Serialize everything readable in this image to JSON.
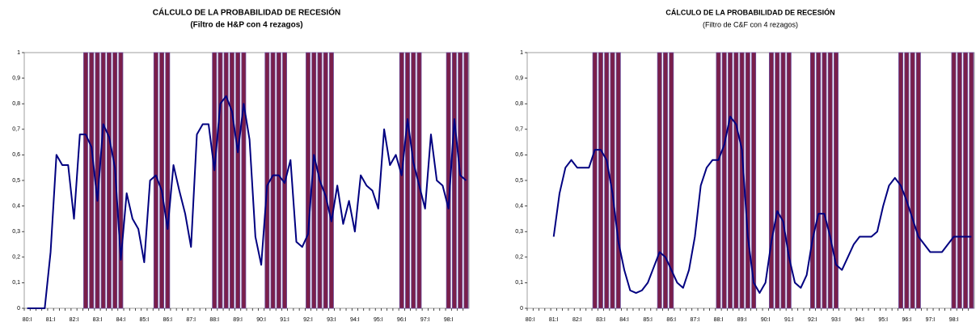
{
  "chart_data": [
    {
      "type": "line",
      "title": "CÁLCULO DE LA PROBABILIDAD DE RECESIÓN",
      "subtitle": "(Filtro de H&P con 4 rezagos)",
      "categories": [
        "80:I",
        null,
        null,
        null,
        "81:I",
        null,
        null,
        null,
        "82:I",
        null,
        null,
        null,
        "83:I",
        null,
        null,
        null,
        "84:I",
        null,
        null,
        null,
        "85:I",
        null,
        null,
        null,
        "86:I",
        null,
        null,
        null,
        "87:I",
        null,
        null,
        null,
        "88:I",
        null,
        null,
        null,
        "89:I",
        null,
        null,
        null,
        "90:I",
        null,
        null,
        null,
        "91:I",
        null,
        null,
        null,
        "92:I",
        null,
        null,
        null,
        "93:I",
        null,
        null,
        null,
        "94:I",
        null,
        null,
        null,
        "95:I",
        null,
        null,
        null,
        "96:I",
        null,
        null,
        null,
        "97:I",
        null,
        null,
        null,
        "98:I",
        null,
        null,
        null
      ],
      "series": [
        {
          "type": "bar",
          "color": "#7a1f4a",
          "values": [
            0,
            0,
            0,
            0,
            0,
            0,
            0,
            0,
            0,
            0,
            1,
            1,
            1,
            1,
            1,
            1,
            1,
            0,
            0,
            0,
            0,
            0,
            1,
            1,
            1,
            0,
            0,
            0,
            0,
            0,
            0,
            0,
            1,
            1,
            1,
            1,
            1,
            1,
            0,
            0,
            0,
            1,
            1,
            1,
            1,
            0,
            0,
            0,
            1,
            1,
            1,
            1,
            1,
            0,
            0,
            0,
            0,
            0,
            0,
            0,
            0,
            0,
            0,
            0,
            1,
            1,
            1,
            1,
            0,
            0,
            0,
            0,
            1,
            1,
            1,
            1
          ]
        },
        {
          "type": "line",
          "color": "#000080",
          "values": [
            0,
            0,
            0,
            0,
            0.22,
            0.6,
            0.56,
            0.56,
            0.35,
            0.68,
            0.68,
            0.63,
            0.42,
            0.72,
            0.67,
            0.55,
            0.19,
            0.45,
            0.35,
            0.31,
            0.18,
            0.5,
            0.52,
            0.46,
            0.31,
            0.56,
            0.46,
            0.37,
            0.24,
            0.68,
            0.72,
            0.72,
            0.54,
            0.8,
            0.83,
            0.77,
            0.61,
            0.8,
            0.66,
            0.28,
            0.17,
            0.48,
            0.52,
            0.52,
            0.49,
            0.58,
            0.26,
            0.24,
            0.29,
            0.6,
            0.5,
            0.44,
            0.34,
            0.48,
            0.33,
            0.42,
            0.3,
            0.52,
            0.48,
            0.46,
            0.39,
            0.7,
            0.56,
            0.6,
            0.52,
            0.74,
            0.57,
            0.48,
            0.39,
            0.68,
            0.5,
            0.48,
            0.39,
            0.74,
            0.52,
            0.5
          ]
        }
      ],
      "ylim": [
        0,
        1
      ],
      "yticks": [
        0,
        {
          "value": 0.1,
          "label": "0,1"
        },
        {
          "value": 0.2,
          "label": "0,2"
        },
        {
          "value": 0.3,
          "label": "0,3"
        },
        {
          "value": 0.4,
          "label": "0,4"
        },
        {
          "value": 0.5,
          "label": "0,5"
        },
        {
          "value": 0.6,
          "label": "0,6"
        },
        {
          "value": 0.7,
          "label": "0,7"
        },
        {
          "value": 0.8,
          "label": "0,8"
        },
        {
          "value": 0.9,
          "label": "0,9"
        },
        1
      ]
    },
    {
      "type": "line",
      "title": "CÁLCULO DE LA PROBABILIDAD DE RECESIÓN",
      "subtitle": "(Filtro de C&F con 4 rezagos)",
      "categories": [
        "80:I",
        null,
        null,
        null,
        "81:I",
        null,
        null,
        null,
        "82:I",
        null,
        null,
        null,
        "83:I",
        null,
        null,
        null,
        "84:I",
        null,
        null,
        null,
        "85:I",
        null,
        null,
        null,
        "86:I",
        null,
        null,
        null,
        "87:I",
        null,
        null,
        null,
        "88:I",
        null,
        null,
        null,
        "89:I",
        null,
        null,
        null,
        "90:I",
        null,
        null,
        null,
        "91:I",
        null,
        null,
        null,
        "92:I",
        null,
        null,
        null,
        "93:I",
        null,
        null,
        null,
        "94:I",
        null,
        null,
        null,
        "95:I",
        null,
        null,
        null,
        "96:I",
        null,
        null,
        null,
        "97:I",
        null,
        null,
        null,
        "98:I",
        null,
        null,
        null
      ],
      "series": [
        {
          "type": "bar",
          "color": "#7a1f4a",
          "values": [
            0,
            0,
            0,
            0,
            0,
            0,
            0,
            0,
            0,
            0,
            0,
            1,
            1,
            1,
            1,
            1,
            0,
            0,
            0,
            0,
            0,
            0,
            1,
            1,
            1,
            0,
            0,
            0,
            0,
            0,
            0,
            0,
            1,
            1,
            1,
            1,
            1,
            1,
            1,
            0,
            0,
            1,
            1,
            1,
            1,
            0,
            0,
            0,
            1,
            1,
            1,
            1,
            1,
            0,
            0,
            0,
            0,
            0,
            0,
            0,
            0,
            0,
            0,
            1,
            1,
            1,
            1,
            0,
            0,
            0,
            0,
            0,
            1,
            1,
            1,
            1
          ]
        },
        {
          "type": "line",
          "color": "#000080",
          "values": [
            null,
            null,
            null,
            null,
            0.28,
            0.45,
            0.55,
            0.58,
            0.55,
            0.55,
            0.55,
            0.62,
            0.62,
            0.58,
            0.45,
            0.26,
            0.15,
            0.07,
            0.06,
            0.07,
            0.1,
            0.16,
            0.22,
            0.2,
            0.15,
            0.1,
            0.08,
            0.15,
            0.28,
            0.48,
            0.55,
            0.58,
            0.58,
            0.64,
            0.75,
            0.72,
            0.62,
            0.28,
            0.1,
            0.06,
            0.1,
            0.26,
            0.38,
            0.34,
            0.2,
            0.1,
            0.08,
            0.13,
            0.27,
            0.37,
            0.37,
            0.28,
            0.17,
            0.15,
            0.2,
            0.25,
            0.28,
            0.28,
            0.28,
            0.3,
            0.4,
            0.48,
            0.51,
            0.48,
            0.42,
            0.35,
            0.28,
            0.25,
            0.22,
            0.22,
            0.22,
            0.25,
            0.28,
            0.28,
            0.28,
            0.28
          ]
        }
      ],
      "ylim": [
        0,
        1
      ],
      "yticks": [
        0,
        {
          "value": 0.1,
          "label": "0,1"
        },
        {
          "value": 0.2,
          "label": "0,2"
        },
        {
          "value": 0.3,
          "label": "0,3"
        },
        {
          "value": 0.4,
          "label": "0,4"
        },
        {
          "value": 0.5,
          "label": "0,5"
        },
        {
          "value": 0.6,
          "label": "0,6"
        },
        {
          "value": 0.7,
          "label": "0,7"
        },
        {
          "value": 0.8,
          "label": "0,8"
        },
        {
          "value": 0.9,
          "label": "0,9"
        },
        1
      ]
    }
  ]
}
